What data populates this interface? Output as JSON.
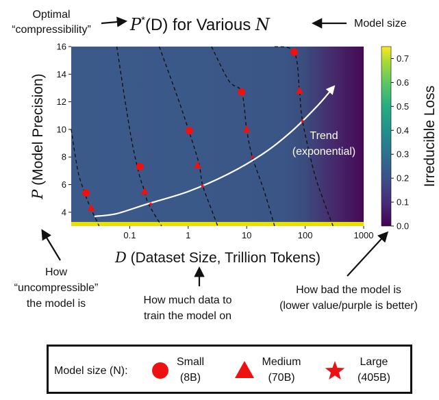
{
  "chart_data": {
    "type": "scatter",
    "title": "P*(D) for Various N",
    "title_parts": {
      "p": "P",
      "star": "*",
      "mid": "(D) for Various ",
      "n": "N"
    },
    "xlabel": "D (Dataset Size, Trillion Tokens)",
    "xlabel_parts": {
      "sym": "D",
      "rest": " (Dataset Size, Trillion Tokens)"
    },
    "ylabel": "P (Model Precision)",
    "ylabel_parts": {
      "sym": "P",
      "rest": " (Model Precision)"
    },
    "x_scale": "log",
    "xlim": [
      0.01,
      1000
    ],
    "ylim": [
      3,
      16
    ],
    "x_ticks": [
      0.1,
      1,
      10,
      100,
      1000
    ],
    "x_tick_labels": [
      "0.1",
      "1",
      "10",
      "100",
      "1000"
    ],
    "y_ticks": [
      4,
      6,
      8,
      10,
      12,
      14,
      16
    ],
    "y_tick_labels": [
      "4",
      "6",
      "8",
      "10",
      "12",
      "14",
      "16"
    ],
    "colorbar": {
      "label": "Irreducible Loss",
      "range": [
        0.0,
        0.75
      ],
      "ticks": [
        0.0,
        0.1,
        0.2,
        0.3,
        0.4,
        0.5,
        0.6,
        0.7
      ],
      "tick_labels": [
        "0.0",
        "0.1",
        "0.2",
        "0.3",
        "0.4",
        "0.5",
        "0.6",
        "0.7"
      ]
    },
    "contour_lines": [
      {
        "points": [
          [
            0.01,
            10.0
          ],
          [
            0.013,
            7.0
          ],
          [
            0.017,
            5.4
          ],
          [
            0.021,
            4.4
          ],
          [
            0.03,
            3.0
          ]
        ]
      },
      {
        "points": [
          [
            0.06,
            16.0
          ],
          [
            0.1,
            10.0
          ],
          [
            0.14,
            7.0
          ],
          [
            0.18,
            5.5
          ],
          [
            0.21,
            4.6
          ],
          [
            0.35,
            3.0
          ]
        ]
      },
      {
        "points": [
          [
            0.32,
            16.0
          ],
          [
            0.7,
            12.0
          ],
          [
            1.2,
            9.0
          ],
          [
            1.55,
            7.4
          ],
          [
            1.75,
            6.0
          ],
          [
            2.3,
            4.6
          ],
          [
            3.2,
            3.0
          ]
        ]
      },
      {
        "points": [
          [
            2.5,
            16.0
          ],
          [
            5.0,
            13.5
          ],
          [
            8.2,
            12.7
          ],
          [
            10.0,
            10.0
          ],
          [
            12.5,
            8.0
          ],
          [
            20.0,
            5.5
          ],
          [
            30.0,
            3.0
          ]
        ]
      },
      {
        "points": [
          [
            30.0,
            16.0
          ],
          [
            65.0,
            15.6
          ],
          [
            80.0,
            12.8
          ],
          [
            90.0,
            10.6
          ],
          [
            140.0,
            7.0
          ],
          [
            200.0,
            5.0
          ],
          [
            300.0,
            3.0
          ]
        ]
      }
    ],
    "series": [
      {
        "name": "Small (8B)",
        "marker": "circle",
        "color": "#ee1111",
        "points": [
          [
            0.018,
            5.4
          ],
          [
            0.15,
            7.3
          ],
          [
            1.05,
            9.9
          ],
          [
            8.2,
            12.7
          ],
          [
            65.0,
            15.6
          ]
        ]
      },
      {
        "name": "Medium (70B)",
        "marker": "triangle",
        "color": "#ee1111",
        "points": [
          [
            0.022,
            4.3
          ],
          [
            0.18,
            5.5
          ],
          [
            1.45,
            7.4
          ],
          [
            10.0,
            10.0
          ],
          [
            80.0,
            12.8
          ]
        ]
      },
      {
        "name": "Large (405B)",
        "marker": "star",
        "color": "#ee1111",
        "points": [
          [
            0.23,
            4.6
          ],
          [
            1.75,
            5.9
          ],
          [
            12.5,
            8.0
          ],
          [
            90.0,
            10.6
          ]
        ]
      }
    ],
    "trend": {
      "label_line1": "Trend",
      "label_line2": "(exponential)",
      "points": [
        [
          0.025,
          3.7
        ],
        [
          0.06,
          3.9
        ],
        [
          0.2,
          4.6
        ],
        [
          1.0,
          5.5
        ],
        [
          5.0,
          6.8
        ],
        [
          20.0,
          8.3
        ],
        [
          60.0,
          9.9
        ],
        [
          170.0,
          11.8
        ],
        [
          310.0,
          13.1
        ]
      ]
    },
    "colors": {
      "plot_bg": "#3b5a8a",
      "purple": "#450a55",
      "bottom_band": "#e8e000",
      "marker": "#ee1111",
      "trend": "#ffffff",
      "contour": "#111111"
    }
  },
  "annotations": {
    "optimal_line1": "Optimal",
    "optimal_line2": "“compressibility”",
    "model_size": "Model size",
    "uncomp_line1": "How",
    "uncomp_line2": "“uncompressible”",
    "uncomp_line3": "the model is",
    "data_line1": "How much data to",
    "data_line2": "train the model on",
    "bad_line1": "How bad the model is",
    "bad_line2": "(lower value/purple is better)"
  },
  "legend": {
    "title": "Model size (N):",
    "items": [
      {
        "line1": "Small",
        "line2": "(8B)",
        "icon": "circle-icon"
      },
      {
        "line1": "Medium",
        "line2": "(70B)",
        "icon": "triangle-icon"
      },
      {
        "line1": "Large",
        "line2": "(405B)",
        "icon": "star-icon"
      }
    ]
  }
}
